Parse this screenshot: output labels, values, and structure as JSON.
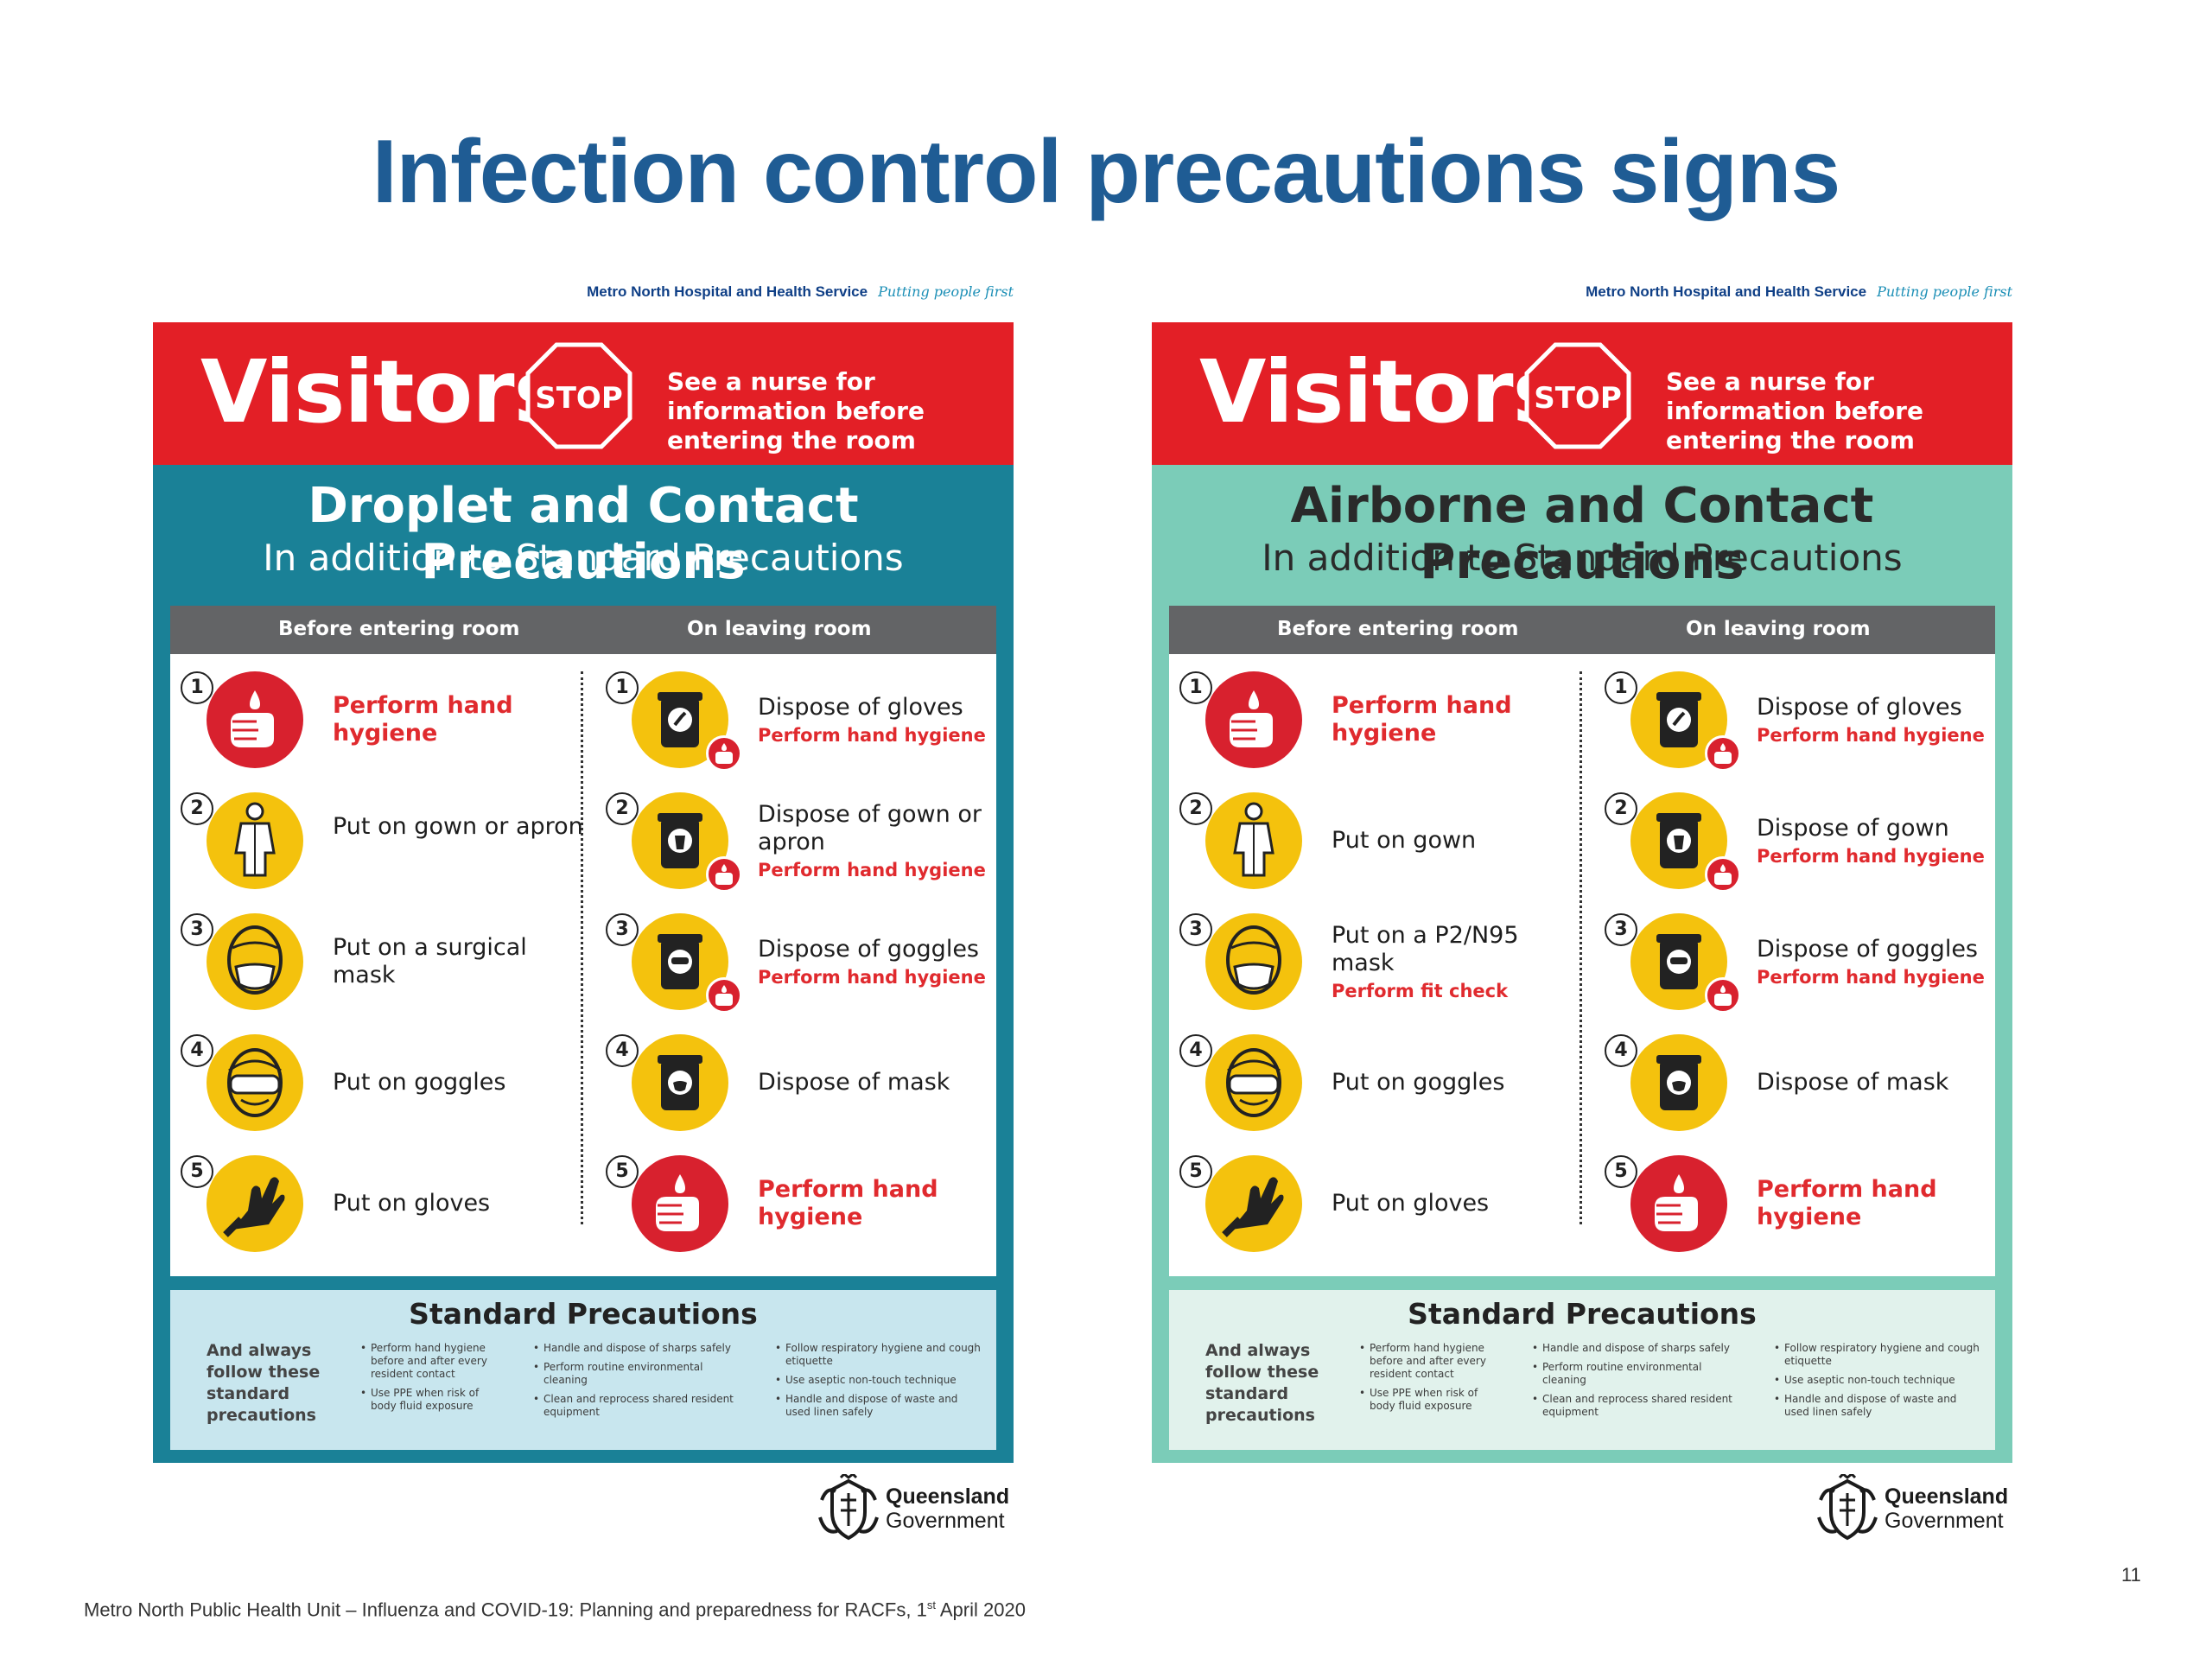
{
  "slide": {
    "title": "Infection control precautions signs",
    "footer_main": "Metro North Public Health Unit – Influenza and COVID-19: Planning and preparedness for RACFs, 1",
    "footer_sup": "st",
    "footer_end": " April 2020",
    "page_number": "11"
  },
  "posters": [
    {
      "org": "Metro North Hospital and Health Service",
      "tagline": "Putting people first",
      "visitors": "Visitors",
      "stop": "STOP",
      "nurse_note": "See a nurse for information before entering the room",
      "title": "Droplet and Contact Precautions",
      "subtitle": "In addition to Standard Precautions",
      "before_header": "Before entering room",
      "leaving_header": "On leaving room",
      "before_steps": [
        {
          "num": "1",
          "text": "Perform hand hygiene",
          "sub": ""
        },
        {
          "num": "2",
          "text": "Put on gown or apron",
          "sub": ""
        },
        {
          "num": "3",
          "text": "Put on a surgical mask",
          "sub": ""
        },
        {
          "num": "4",
          "text": "Put on goggles",
          "sub": ""
        },
        {
          "num": "5",
          "text": "Put on gloves",
          "sub": ""
        }
      ],
      "leaving_steps": [
        {
          "num": "1",
          "text": "Dispose of gloves",
          "sub": "Perform hand hygiene"
        },
        {
          "num": "2",
          "text": "Dispose of gown or apron",
          "sub": "Perform hand hygiene"
        },
        {
          "num": "3",
          "text": "Dispose of goggles",
          "sub": "Perform hand hygiene"
        },
        {
          "num": "4",
          "text": "Dispose of mask",
          "sub": ""
        },
        {
          "num": "5",
          "text": "Perform hand hygiene",
          "sub": ""
        }
      ],
      "standard": {
        "title": "Standard Precautions",
        "intro": "And always follow these standard precautions",
        "col1": [
          "Perform hand hygiene before and after every resident contact",
          "Use PPE when risk of body fluid exposure"
        ],
        "col2": [
          "Handle and dispose of sharps safely",
          "Perform routine environmental cleaning",
          "Clean and reprocess shared resident equipment"
        ],
        "col3": [
          "Follow respiratory hygiene and cough etiquette",
          "Use aseptic non-touch technique",
          "Handle and dispose of waste and used linen safely"
        ]
      },
      "logo_name": "Queensland",
      "logo_gov": "Government"
    },
    {
      "org": "Metro North Hospital and Health Service",
      "tagline": "Putting people first",
      "visitors": "Visitors",
      "stop": "STOP",
      "nurse_note": "See a nurse for information before entering the room",
      "title": "Airborne and Contact Precautions",
      "subtitle": "In addition to Standard Precautions",
      "before_header": "Before entering room",
      "leaving_header": "On leaving room",
      "before_steps": [
        {
          "num": "1",
          "text": "Perform hand hygiene",
          "sub": ""
        },
        {
          "num": "2",
          "text": "Put on gown",
          "sub": ""
        },
        {
          "num": "3",
          "text": "Put on a P2/N95 mask",
          "sub": "Perform fit check"
        },
        {
          "num": "4",
          "text": "Put on goggles",
          "sub": ""
        },
        {
          "num": "5",
          "text": "Put on gloves",
          "sub": ""
        }
      ],
      "leaving_steps": [
        {
          "num": "1",
          "text": "Dispose of gloves",
          "sub": "Perform hand hygiene"
        },
        {
          "num": "2",
          "text": "Dispose of gown",
          "sub": "Perform hand hygiene"
        },
        {
          "num": "3",
          "text": "Dispose of goggles",
          "sub": "Perform hand hygiene"
        },
        {
          "num": "4",
          "text": "Dispose of mask",
          "sub": ""
        },
        {
          "num": "5",
          "text": "Perform hand hygiene",
          "sub": ""
        }
      ],
      "standard": {
        "title": "Standard Precautions",
        "intro": "And always follow these standard precautions",
        "col1": [
          "Perform hand hygiene before and after every resident contact",
          "Use PPE when risk of body fluid exposure"
        ],
        "col2": [
          "Handle and dispose of sharps safely",
          "Perform routine environmental cleaning",
          "Clean and reprocess shared resident equipment"
        ],
        "col3": [
          "Follow respiratory hygiene and cough etiquette",
          "Use aseptic non-touch technique",
          "Handle and dispose of waste and used linen safely"
        ]
      },
      "logo_name": "Queensland",
      "logo_gov": "Government"
    }
  ],
  "icons": {
    "before": [
      "hand-hygiene-icon",
      "gown-icon",
      "mask-icon",
      "goggles-icon",
      "gloves-icon"
    ],
    "leaving": [
      "bin-gloves-icon",
      "bin-gown-icon",
      "bin-goggles-icon",
      "bin-mask-icon",
      "hand-hygiene-icon"
    ]
  },
  "colors": {
    "title_blue": "#1f5c94",
    "stop_red": "#e31f26",
    "droplet_teal": "#1a8197",
    "airborne_mint": "#7bccb8",
    "icon_yellow": "#f4c20d",
    "hand_red": "#d8212e"
  }
}
